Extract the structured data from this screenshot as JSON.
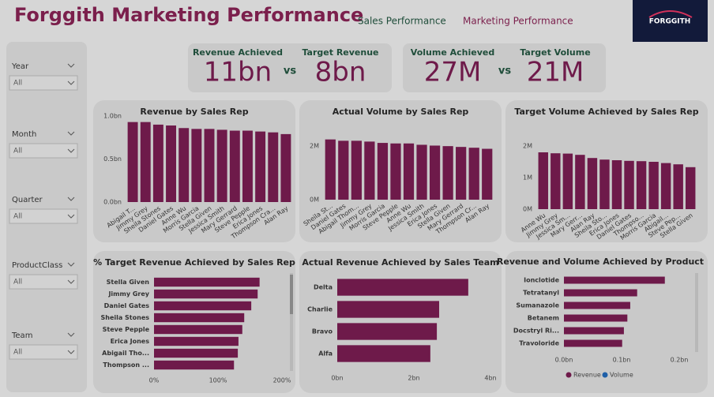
{
  "header": {
    "title": "Forggith Marketing Performance",
    "nav": [
      "Sales Performance",
      "Marketing Performance"
    ],
    "logo": "FORGGITH"
  },
  "filters": [
    {
      "label": "Year",
      "value": "All"
    },
    {
      "label": "Month",
      "value": "All"
    },
    {
      "label": "Quarter",
      "value": "All"
    },
    {
      "label": "ProductClass",
      "value": "All"
    },
    {
      "label": "Team",
      "value": "All"
    }
  ],
  "kpi_groups": [
    {
      "left": {
        "label": "Revenue Achieved",
        "value": "11bn"
      },
      "joiner": "vs",
      "right": {
        "label": "Target Revenue",
        "value": "8bn"
      }
    },
    {
      "left": {
        "label": "Volume Achieved",
        "value": "27M"
      },
      "joiner": "vs",
      "right": {
        "label": "Target Volume",
        "value": "21M"
      }
    }
  ],
  "chart_data": [
    {
      "type": "bar",
      "horizontal": false,
      "title": "Revenue by Sales Rep",
      "color": "#6e1a4a",
      "categories": [
        "Abigail T...",
        "Jimmy Grey",
        "Sheila Stones",
        "Daniel Gates",
        "Anne Wu",
        "Morris Garcia",
        "Stella Given",
        "Jessica Smith",
        "Mary Gerrard",
        "Steve Pepple",
        "Erica Jones",
        "Thompson Cra...",
        "Alan Ray"
      ],
      "values": [
        0.93,
        0.93,
        0.9,
        0.89,
        0.86,
        0.85,
        0.85,
        0.84,
        0.83,
        0.83,
        0.82,
        0.81,
        0.79
      ],
      "ylim": [
        0,
        1.0
      ],
      "yticks": [
        {
          "value": 0,
          "label": "0.0bn"
        },
        {
          "value": 0.5,
          "label": "0.5bn"
        },
        {
          "value": 1.0,
          "label": "1.0bn"
        }
      ],
      "grid": false
    },
    {
      "type": "bar",
      "horizontal": false,
      "title": "Actual Volume by Sales Rep",
      "color": "#6e1a4a",
      "categories": [
        "Sheila St...",
        "Daniel Gates",
        "Abigail Thom...",
        "Jimmy Grey",
        "Morris Garcia",
        "Steve Pepple",
        "Anne Wu",
        "Jessica Smith",
        "Erica Jones",
        "Stella Given",
        "Mary Gerrard",
        "Thompson Cr...",
        "Alan Ray"
      ],
      "values": [
        2.25,
        2.2,
        2.2,
        2.17,
        2.12,
        2.1,
        2.1,
        2.05,
        2.02,
        2.0,
        1.97,
        1.94,
        1.9
      ],
      "ylim": [
        0,
        2.8
      ],
      "yticks": [
        {
          "value": 0,
          "label": "0M"
        },
        {
          "value": 2,
          "label": "2M"
        }
      ],
      "grid": false
    },
    {
      "type": "bar",
      "horizontal": false,
      "title": "Target Volume Achieved by Sales Rep",
      "color": "#6e1a4a",
      "categories": [
        "Anne Wu",
        "Jimmy Grey",
        "Jessica Sm...",
        "Mary Gerr...",
        "Alan Ray",
        "Sheila Sto...",
        "Erica Jones",
        "Daniel Gates",
        "Thompso...",
        "Morris Garcia",
        "Abigail...",
        "Steve Pep...",
        "Stella Given"
      ],
      "values": [
        1.8,
        1.77,
        1.76,
        1.72,
        1.62,
        1.57,
        1.55,
        1.53,
        1.52,
        1.5,
        1.46,
        1.42,
        1.33
      ],
      "ylim": [
        0,
        2.2
      ],
      "yticks": [
        {
          "value": 0,
          "label": "0M"
        },
        {
          "value": 1,
          "label": "1M"
        },
        {
          "value": 2,
          "label": "2M"
        }
      ],
      "grid": false
    },
    {
      "type": "bar",
      "horizontal": true,
      "title": "% Target Revenue Achieved by Sales Rep",
      "color": "#6e1a4a",
      "categories": [
        "Stella Given",
        "Jimmy Grey",
        "Daniel Gates",
        "Sheila Stones",
        "Steve Pepple",
        "Erica Jones",
        "Abigail Tho...",
        "Thompson ..."
      ],
      "values": [
        165,
        162,
        152,
        141,
        138,
        132,
        131,
        125
      ],
      "xlim": [
        0,
        200
      ],
      "xticks": [
        {
          "value": 0,
          "label": "0%"
        },
        {
          "value": 100,
          "label": "100%"
        },
        {
          "value": 200,
          "label": "200%"
        }
      ],
      "grid": false
    },
    {
      "type": "bar",
      "horizontal": true,
      "title": "Actual Revenue Achieved by Sales Team",
      "color": "#6e1a4a",
      "categories": [
        "Delta",
        "Charlie",
        "Bravo",
        "Alfa"
      ],
      "values": [
        3.42,
        2.66,
        2.6,
        2.43
      ],
      "xlim": [
        0,
        4
      ],
      "xticks": [
        {
          "value": 0,
          "label": "0bn"
        },
        {
          "value": 2,
          "label": "2bn"
        },
        {
          "value": 4,
          "label": "4bn"
        }
      ],
      "grid": false
    },
    {
      "type": "bar",
      "horizontal": true,
      "title": "Revenue and Volume Achieved by Product",
      "categories": [
        "Ionclotide",
        "Tetratanyl",
        "Sumanazole",
        "Betanem",
        "Docstryl Ri...",
        "Travoloride"
      ],
      "series": [
        {
          "name": "Revenue",
          "color": "#6e1a4a",
          "values": [
            0.175,
            0.127,
            0.115,
            0.11,
            0.104,
            0.101
          ]
        },
        {
          "name": "Volume",
          "color": "#1f5fa8",
          "values": [
            null,
            null,
            null,
            null,
            null,
            null
          ]
        }
      ],
      "xlim": [
        0,
        0.2
      ],
      "xticks": [
        {
          "value": 0,
          "label": "0.0bn"
        },
        {
          "value": 0.1,
          "label": "0.1bn"
        },
        {
          "value": 0.2,
          "label": "0.2bn"
        }
      ],
      "grid": false,
      "legend": "bottom"
    }
  ]
}
